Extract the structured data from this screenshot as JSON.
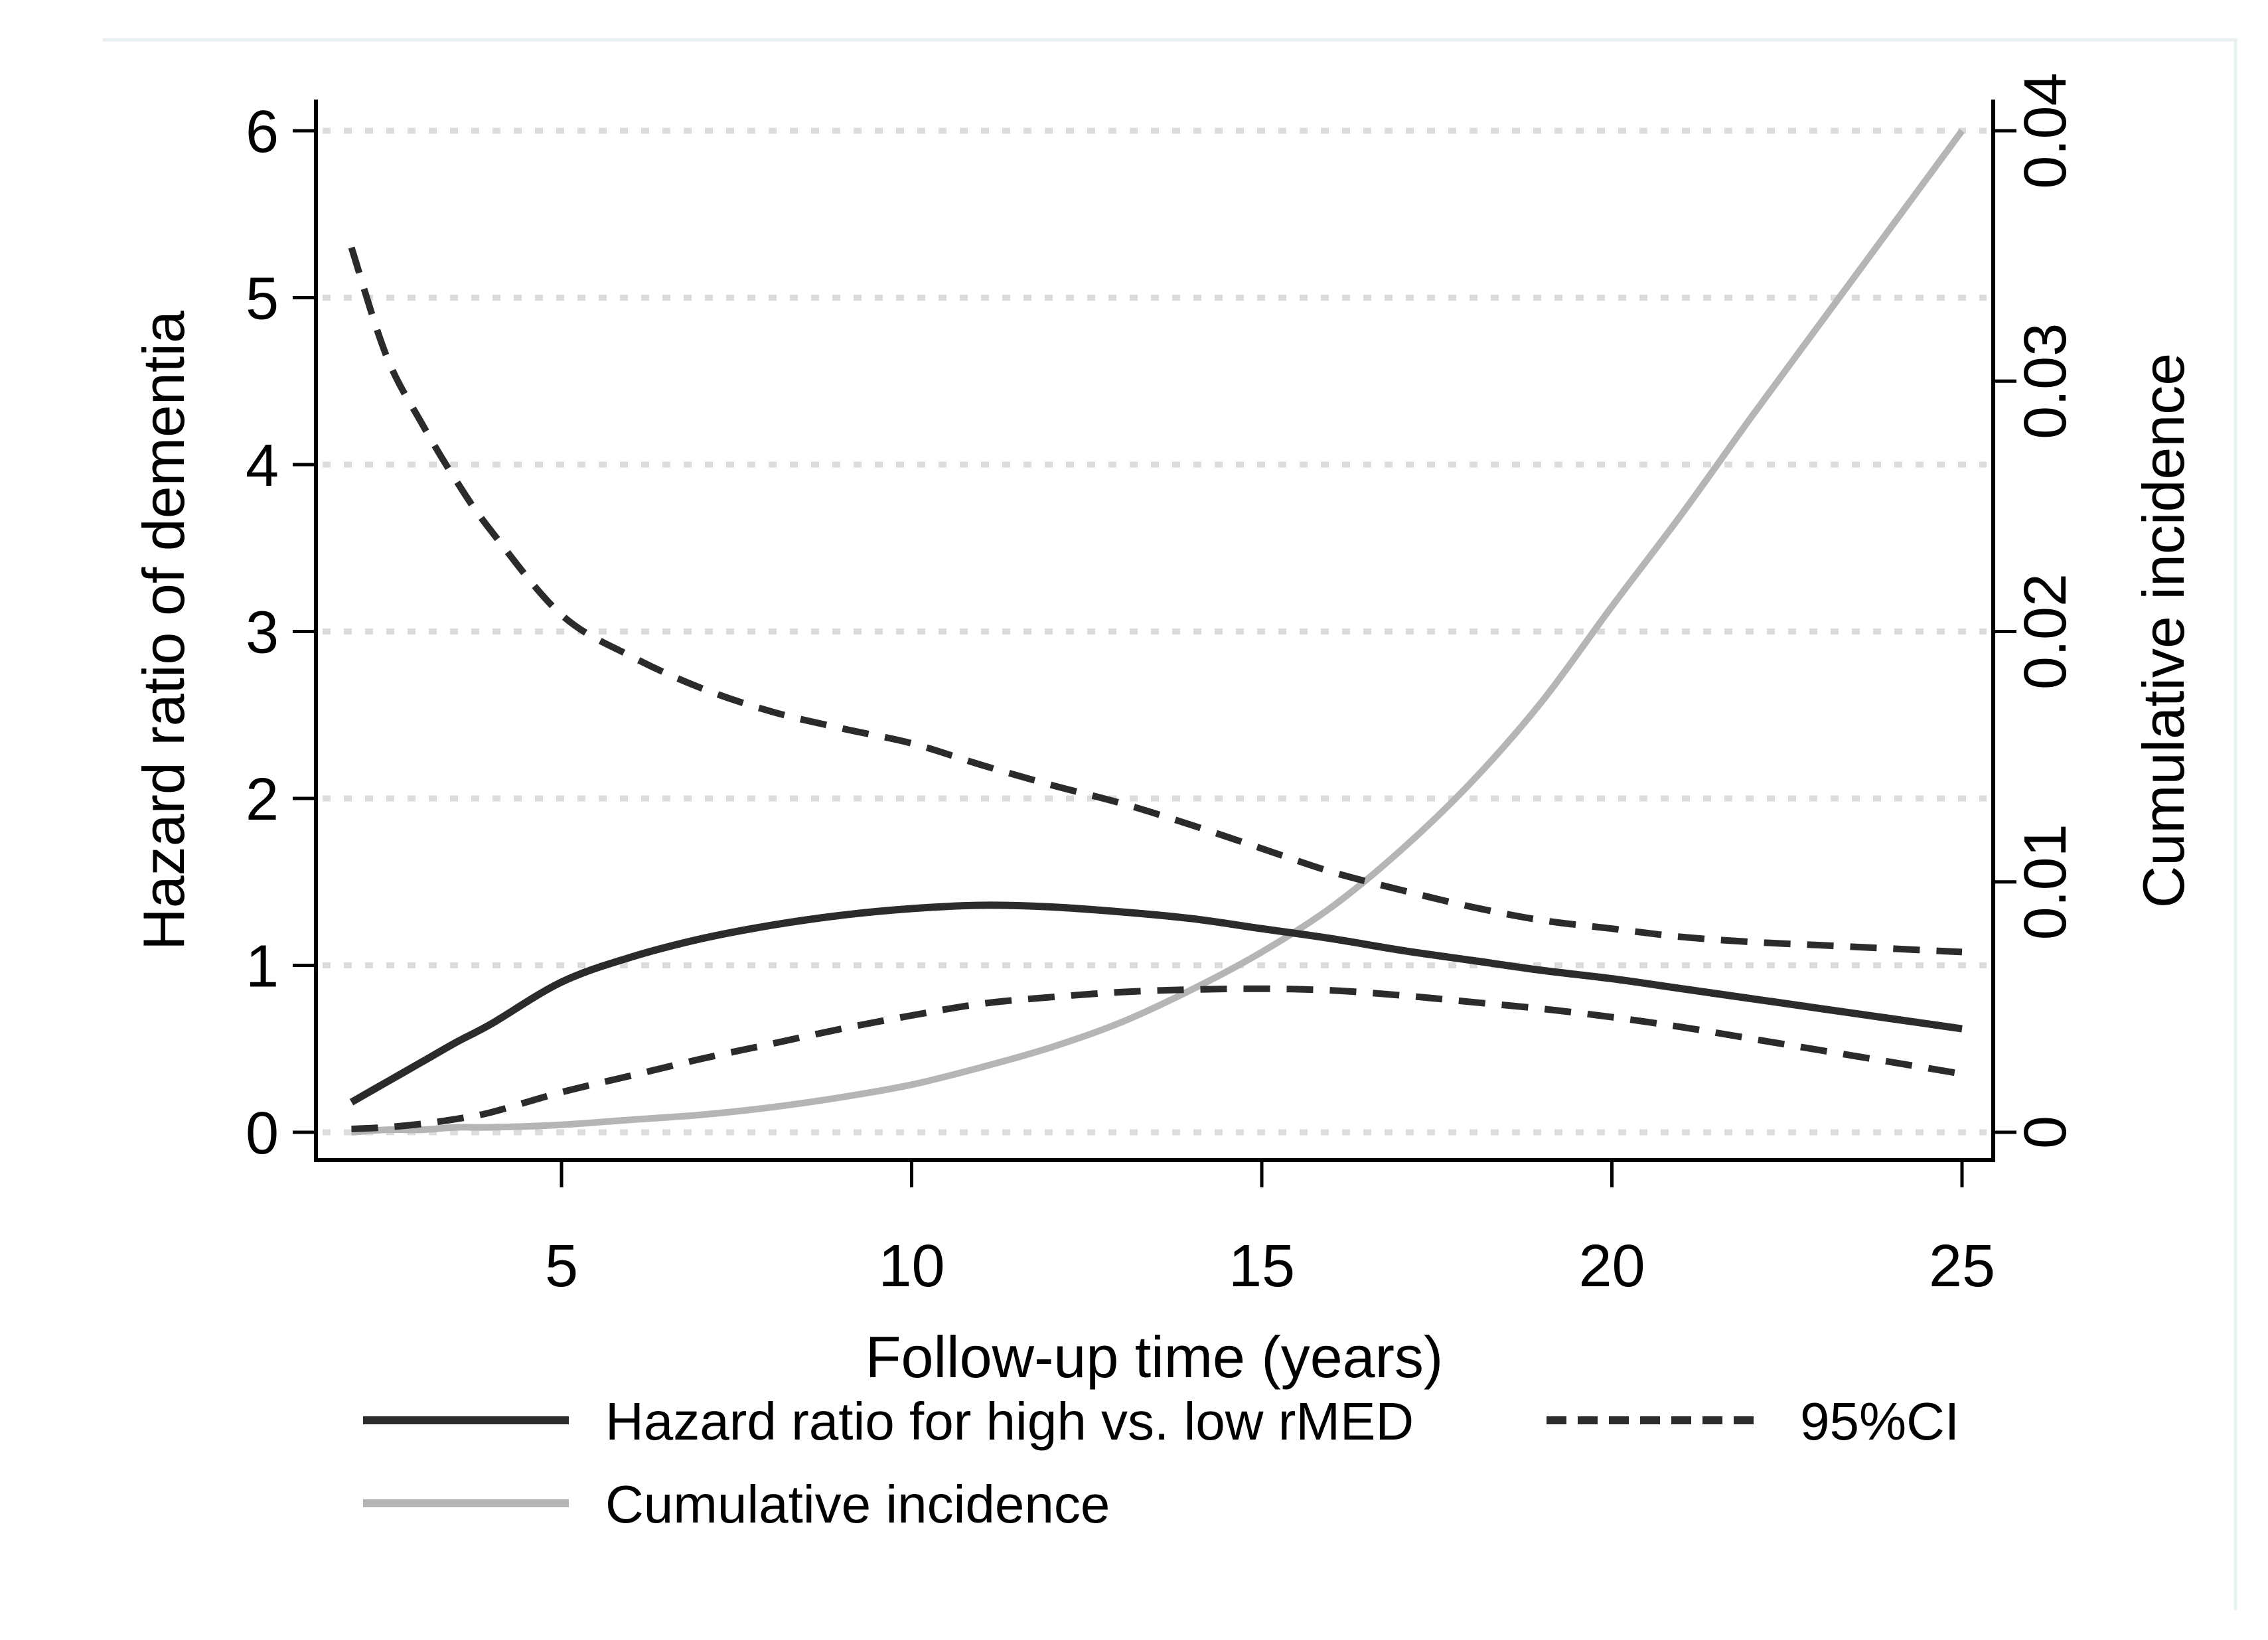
{
  "figure": {
    "page_border_color": "#e8f0f1",
    "background": "#ffffff"
  },
  "chart_data": {
    "type": "line",
    "title": "",
    "xlabel": "Follow-up time (years)",
    "ylabel_left": "Hazard ratio of dementia",
    "ylabel_right": "Cumulative incidence",
    "xlim": [
      1.5,
      25.5
    ],
    "ylim_left": [
      0,
      6
    ],
    "ylim_right": [
      0,
      0.04
    ],
    "grid": "horizontal dotted light-gray lines at each left-axis integer",
    "x_ticks": [
      5,
      10,
      15,
      20,
      25
    ],
    "x_tick_labels": [
      "5",
      "10",
      "15",
      "20",
      "25"
    ],
    "y_ticks_left": [
      0,
      1,
      2,
      3,
      4,
      5,
      6
    ],
    "y_tick_labels_left": [
      "0",
      "1",
      "2",
      "3",
      "4",
      "5",
      "6"
    ],
    "y_ticks_right": [
      0,
      0.01,
      0.02,
      0.03,
      0.04
    ],
    "y_tick_labels_right": [
      "0",
      "0.01",
      "0.02",
      "0.03",
      "0.04"
    ],
    "x": [
      2,
      2.5,
      3,
      3.5,
      4,
      5,
      6,
      7,
      8,
      9,
      10,
      11,
      12,
      13,
      14,
      15,
      16,
      17,
      18,
      19,
      20,
      21,
      22,
      23,
      24,
      25
    ],
    "series": [
      {
        "name": "Hazard ratio for high vs. low rMED",
        "axis": "left",
        "line": "solid",
        "color": "#2b2b2b",
        "width": 11,
        "values": [
          0.18,
          0.3,
          0.42,
          0.54,
          0.65,
          0.9,
          1.05,
          1.16,
          1.24,
          1.3,
          1.34,
          1.36,
          1.35,
          1.32,
          1.28,
          1.22,
          1.16,
          1.09,
          1.03,
          0.97,
          0.92,
          0.86,
          0.8,
          0.74,
          0.68,
          0.62
        ]
      },
      {
        "name": "95%CI upper bound",
        "axis": "left",
        "line": "dashed",
        "color": "#2b2b2b",
        "width": 10,
        "values": [
          5.3,
          4.65,
          4.25,
          3.9,
          3.6,
          3.1,
          2.85,
          2.66,
          2.52,
          2.42,
          2.33,
          2.2,
          2.08,
          1.97,
          1.84,
          1.7,
          1.56,
          1.45,
          1.35,
          1.27,
          1.22,
          1.17,
          1.14,
          1.12,
          1.1,
          1.08
        ]
      },
      {
        "name": "95%CI lower bound",
        "axis": "left",
        "line": "dashed",
        "color": "#2b2b2b",
        "width": 10,
        "values": [
          0.02,
          0.03,
          0.05,
          0.08,
          0.12,
          0.24,
          0.34,
          0.44,
          0.53,
          0.62,
          0.7,
          0.77,
          0.81,
          0.84,
          0.855,
          0.86,
          0.85,
          0.82,
          0.78,
          0.74,
          0.69,
          0.63,
          0.56,
          0.49,
          0.42,
          0.35
        ]
      },
      {
        "name": "Cumulative incidence",
        "axis": "right",
        "line": "solid",
        "color": "#b5b5b5",
        "width": 10,
        "values": [
          0.0,
          0.0001,
          0.0001,
          0.0002,
          0.0002,
          0.0003,
          0.0005,
          0.0007,
          0.001,
          0.0014,
          0.0019,
          0.0026,
          0.0034,
          0.0044,
          0.0057,
          0.0072,
          0.009,
          0.0113,
          0.014,
          0.0172,
          0.021,
          0.0247,
          0.0286,
          0.0324,
          0.0362,
          0.04
        ]
      }
    ],
    "legend": {
      "position": "below x-axis, two rows, left-aligned",
      "items": [
        {
          "label": "Hazard ratio for high vs. low rMED",
          "swatch": "solid-dark"
        },
        {
          "label": "95%CI",
          "swatch": "dashed-dark"
        },
        {
          "label": "Cumulative incidence",
          "swatch": "solid-gray"
        }
      ]
    },
    "colors": {
      "grid": "#dcdcdc",
      "axis": "#000000",
      "line_dark": "#2b2b2b",
      "line_gray": "#b5b5b5"
    }
  }
}
